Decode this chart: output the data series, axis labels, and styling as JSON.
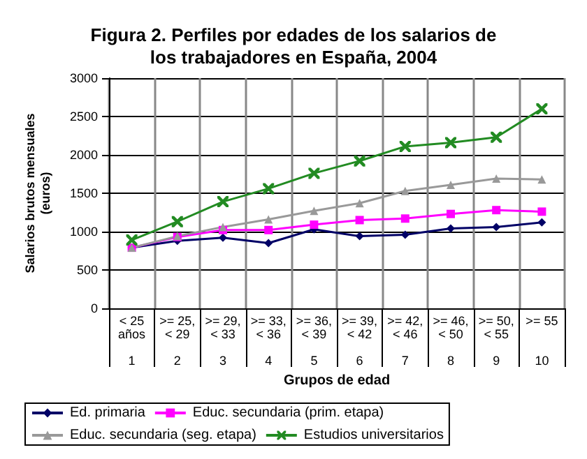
{
  "chart_data": {
    "type": "line",
    "title": "Figura 2. Perfiles por edades de los salarios de\nlos trabajadores en España, 2004",
    "xlabel": "Grupos de edad",
    "ylabel": "Salarios brutos mensuales\n(euros)",
    "categories": [
      "< 25\naños\n\n1",
      ">= 25,\n< 29\n\n2",
      ">= 29,\n< 33\n\n3",
      ">= 33,\n< 36\n\n4",
      ">= 36,\n< 39\n\n5",
      ">= 39,\n< 42\n\n6",
      ">= 42,\n< 46\n\n7",
      ">= 46,\n< 50\n\n8",
      ">= 50,\n< 55\n\n9",
      ">= 55\n\n\n10"
    ],
    "series": [
      {
        "name": "Ed. primaria",
        "color": "#000066",
        "marker": "diamond",
        "values": [
          790,
          880,
          920,
          850,
          1030,
          940,
          960,
          1040,
          1060,
          1120
        ]
      },
      {
        "name": "Educ. secundaria (prim. etapa)",
        "color": "#ff00ff",
        "marker": "square",
        "values": [
          790,
          930,
          1020,
          1020,
          1090,
          1150,
          1170,
          1230,
          1280,
          1260
        ]
      },
      {
        "name": "Educ. secundaria (seg. etapa)",
        "color": "#999999",
        "marker": "triangle",
        "values": [
          790,
          940,
          1060,
          1160,
          1270,
          1370,
          1530,
          1610,
          1690,
          1680
        ]
      },
      {
        "name": "Estudios universitarios",
        "color": "#228b22",
        "marker": "cross",
        "values": [
          890,
          1130,
          1390,
          1560,
          1760,
          1920,
          2110,
          2160,
          2230,
          2600
        ]
      }
    ],
    "ylim": [
      0,
      3000
    ],
    "yticks": [
      0,
      500,
      1000,
      1500,
      2000,
      2500,
      3000
    ],
    "grid": true,
    "legend": "bottom",
    "line_style": "solid"
  }
}
